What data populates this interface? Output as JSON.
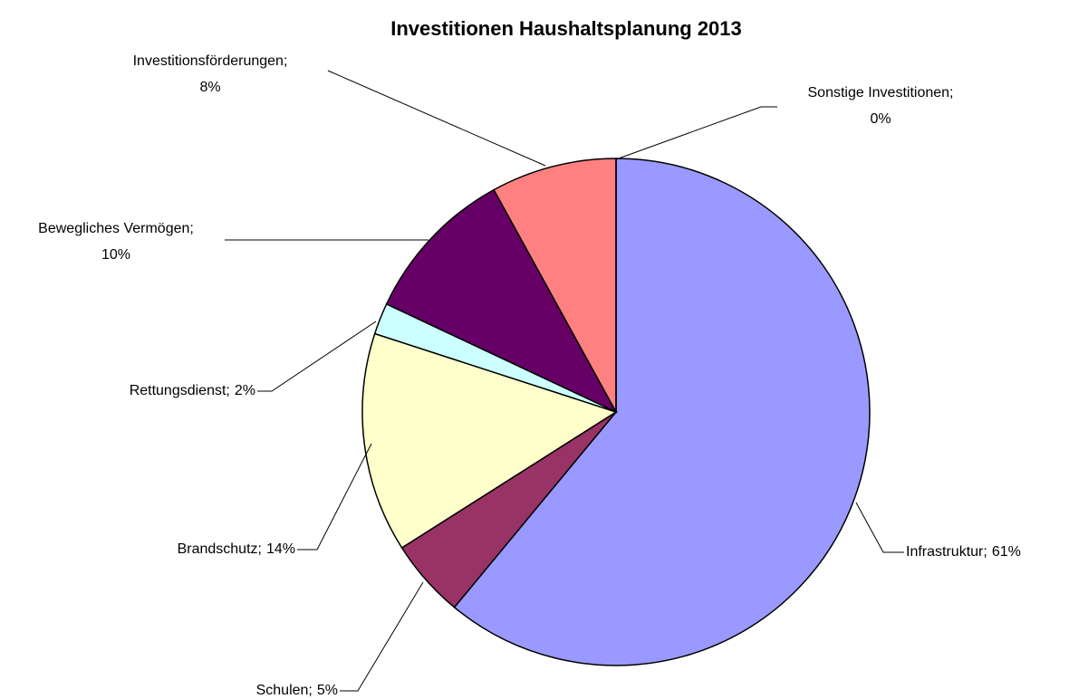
{
  "chart_data": {
    "type": "pie",
    "title": "Investitionen Haushaltsplanung 2013",
    "categories": [
      "Infrastruktur;",
      "Schulen;",
      "Brandschutz;",
      "Rettungsdienst;",
      "Bewegliches Vermögen;",
      "Investitionsförderungen;",
      "Sonstige Investitionen;"
    ],
    "values": [
      61,
      5,
      14,
      2,
      10,
      8,
      0
    ],
    "value_labels": [
      "61%",
      "5%",
      "14%",
      "2%",
      "10%",
      "8%",
      "0%"
    ],
    "colors": [
      "#9999ff",
      "#993366",
      "#ffffcc",
      "#ccffff",
      "#660066",
      "#ff8080",
      "#800000"
    ]
  }
}
